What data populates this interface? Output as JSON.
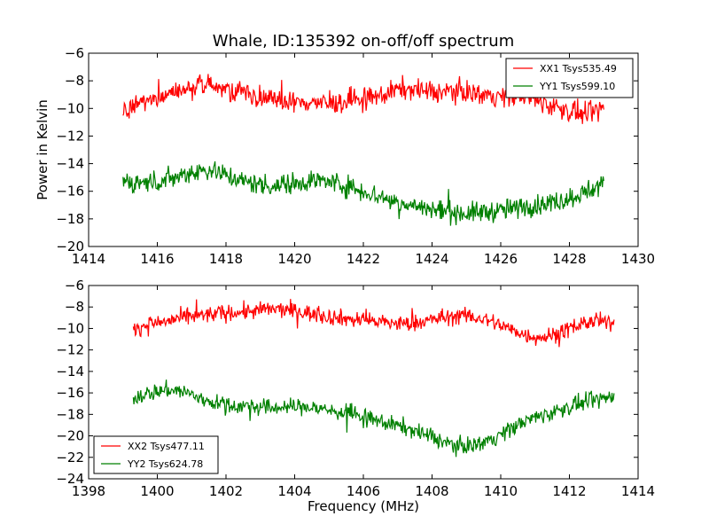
{
  "figure": {
    "background": "#ffffff"
  },
  "chart_data": [
    {
      "type": "line",
      "title": "Whale, ID:135392 on-off/off spectrum",
      "xlabel": "",
      "ylabel": "Power in Kelvin",
      "xlim": [
        1414,
        1430
      ],
      "ylim": [
        -20,
        -6
      ],
      "xticks": [
        "1414",
        "1416",
        "1418",
        "1420",
        "1422",
        "1424",
        "1426",
        "1428",
        "1430"
      ],
      "yticks": [
        "−20",
        "−18",
        "−16",
        "−14",
        "−12",
        "−10",
        "−8",
        "−6"
      ],
      "grid": false,
      "legend_position": "top-right",
      "series": [
        {
          "name": "XX1 Tsys535.49",
          "color": "#ff0000",
          "x": [
            1415.0,
            1415.5,
            1416.0,
            1416.5,
            1417.0,
            1417.5,
            1418.0,
            1418.5,
            1419.0,
            1419.5,
            1420.0,
            1420.5,
            1421.0,
            1421.5,
            1422.0,
            1422.5,
            1423.0,
            1423.5,
            1424.0,
            1424.5,
            1425.0,
            1425.5,
            1426.0,
            1426.5,
            1427.0,
            1427.5,
            1428.0,
            1428.5,
            1429.0
          ],
          "y": [
            -10.2,
            -9.5,
            -9.3,
            -8.9,
            -8.5,
            -8.3,
            -8.6,
            -8.7,
            -9.2,
            -9.4,
            -9.6,
            -9.5,
            -9.7,
            -9.5,
            -9.3,
            -9.1,
            -8.6,
            -8.6,
            -8.9,
            -8.7,
            -8.8,
            -9.0,
            -9.1,
            -9.0,
            -9.4,
            -9.8,
            -10.2,
            -10.5,
            -10.0
          ]
        },
        {
          "name": "YY1 Tsys599.10",
          "color": "#008000",
          "x": [
            1415.0,
            1415.5,
            1416.0,
            1416.5,
            1417.0,
            1417.5,
            1418.0,
            1418.5,
            1419.0,
            1419.5,
            1420.0,
            1420.5,
            1421.0,
            1421.5,
            1422.0,
            1422.5,
            1423.0,
            1423.5,
            1424.0,
            1424.5,
            1425.0,
            1425.5,
            1426.0,
            1426.5,
            1427.0,
            1427.5,
            1428.0,
            1428.5,
            1429.0
          ],
          "y": [
            -15.2,
            -15.4,
            -15.3,
            -15.0,
            -14.6,
            -14.4,
            -14.8,
            -15.3,
            -15.5,
            -15.6,
            -15.4,
            -15.2,
            -15.3,
            -15.6,
            -16.0,
            -16.4,
            -16.8,
            -17.1,
            -17.3,
            -17.5,
            -17.6,
            -17.5,
            -17.4,
            -17.2,
            -17.0,
            -16.8,
            -16.5,
            -16.0,
            -15.5
          ]
        }
      ]
    },
    {
      "type": "line",
      "title": "",
      "xlabel": "Frequency (MHz)",
      "ylabel": "",
      "xlim": [
        1398,
        1414
      ],
      "ylim": [
        -24,
        -6
      ],
      "xticks": [
        "1398",
        "1400",
        "1402",
        "1404",
        "1406",
        "1408",
        "1410",
        "1412",
        "1414"
      ],
      "yticks": [
        "−24",
        "−22",
        "−20",
        "−18",
        "−16",
        "−14",
        "−12",
        "−10",
        "−8",
        "−6"
      ],
      "grid": false,
      "legend_position": "bottom-left",
      "series": [
        {
          "name": "XX2 Tsys477.11",
          "color": "#ff0000",
          "x": [
            1399.3,
            1399.8,
            1400.3,
            1400.8,
            1401.3,
            1401.8,
            1402.3,
            1402.8,
            1403.3,
            1403.8,
            1404.3,
            1404.8,
            1405.3,
            1405.8,
            1406.3,
            1406.8,
            1407.3,
            1407.8,
            1408.3,
            1408.8,
            1409.3,
            1409.8,
            1410.3,
            1410.8,
            1411.3,
            1411.8,
            1412.3,
            1412.8,
            1413.3
          ],
          "y": [
            -10.0,
            -9.6,
            -9.3,
            -9.0,
            -8.8,
            -8.6,
            -8.5,
            -8.4,
            -8.2,
            -8.3,
            -8.5,
            -8.8,
            -9.0,
            -9.2,
            -9.3,
            -9.5,
            -9.6,
            -9.3,
            -9.0,
            -8.8,
            -9.0,
            -9.4,
            -10.1,
            -10.7,
            -10.8,
            -10.3,
            -9.6,
            -9.3,
            -9.6
          ]
        },
        {
          "name": "YY2 Tsys624.78",
          "color": "#008000",
          "x": [
            1399.3,
            1399.8,
            1400.3,
            1400.8,
            1401.3,
            1401.8,
            1402.3,
            1402.8,
            1403.3,
            1403.8,
            1404.3,
            1404.8,
            1405.3,
            1405.8,
            1406.3,
            1406.8,
            1407.3,
            1407.8,
            1408.3,
            1408.8,
            1409.3,
            1409.8,
            1410.3,
            1410.8,
            1411.3,
            1411.8,
            1412.3,
            1412.8,
            1413.3
          ],
          "y": [
            -16.4,
            -16.0,
            -15.7,
            -15.9,
            -16.6,
            -17.0,
            -17.2,
            -17.3,
            -17.4,
            -17.3,
            -17.3,
            -17.5,
            -17.8,
            -18.1,
            -18.5,
            -18.9,
            -19.3,
            -19.9,
            -20.5,
            -21.0,
            -20.8,
            -20.2,
            -19.3,
            -18.5,
            -18.0,
            -17.5,
            -17.0,
            -16.7,
            -16.3
          ]
        }
      ]
    }
  ]
}
